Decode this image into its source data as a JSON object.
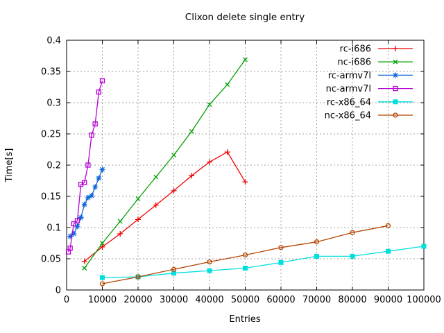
{
  "window": {
    "background": "#ffffff"
  },
  "chart_data": {
    "type": "line",
    "title": "Clixon delete single entry",
    "xlabel": "Entries",
    "ylabel": "Time[s]",
    "xlim": [
      0,
      100000
    ],
    "ylim": [
      0,
      0.4
    ],
    "x_ticks": [
      0,
      10000,
      20000,
      30000,
      40000,
      50000,
      60000,
      70000,
      80000,
      90000,
      100000
    ],
    "x_tick_labels": [
      "0",
      "10000",
      "20000",
      "30000",
      "40000",
      "50000",
      "60000",
      "70000",
      "80000",
      "90000",
      "100000"
    ],
    "y_ticks": [
      0,
      0.05,
      0.1,
      0.15,
      0.2,
      0.25,
      0.3,
      0.35,
      0.4
    ],
    "y_tick_labels": [
      "0",
      "0.05",
      "0.1",
      "0.15",
      "0.2",
      "0.25",
      "0.3",
      "0.35",
      "0.4"
    ],
    "grid": true,
    "grid_color": "#a0a0a0",
    "legend_position": "top-right-inside",
    "series": [
      {
        "name": "rc-i686",
        "color": "#ee0000",
        "marker": "plus",
        "x": [
          5000,
          10000,
          15000,
          20000,
          25000,
          30000,
          35000,
          40000,
          45000,
          50000
        ],
        "y": [
          0.046,
          0.069,
          0.09,
          0.113,
          0.136,
          0.159,
          0.183,
          0.205,
          0.221,
          0.173
        ]
      },
      {
        "name": "nc-i686",
        "color": "#00a000",
        "marker": "cross",
        "x": [
          5000,
          10000,
          15000,
          20000,
          25000,
          30000,
          35000,
          40000,
          45000,
          50000
        ],
        "y": [
          0.035,
          0.075,
          0.11,
          0.146,
          0.181,
          0.216,
          0.254,
          0.297,
          0.329,
          0.369
        ]
      },
      {
        "name": "rc-armv7l",
        "color": "#0a64d8",
        "marker": "asterisk",
        "x": [
          1000,
          2000,
          3000,
          4000,
          5000,
          6000,
          7000,
          8000,
          9000,
          10000
        ],
        "y": [
          0.086,
          0.09,
          0.102,
          0.116,
          0.137,
          0.148,
          0.151,
          0.165,
          0.179,
          0.193
        ]
      },
      {
        "name": "nc-armv7l",
        "color": "#b400d3",
        "marker": "open-square",
        "x": [
          500,
          1000,
          2000,
          3000,
          4000,
          5000,
          6000,
          7000,
          8000,
          9000,
          10000
        ],
        "y": [
          0.061,
          0.067,
          0.106,
          0.111,
          0.169,
          0.172,
          0.2,
          0.248,
          0.266,
          0.317,
          0.335
        ]
      },
      {
        "name": "rc-x86_64",
        "color": "#00dede",
        "marker": "filled-square",
        "x": [
          10000,
          20000,
          30000,
          40000,
          50000,
          60000,
          70000,
          80000,
          90000,
          100000
        ],
        "y": [
          0.02,
          0.021,
          0.027,
          0.031,
          0.035,
          0.044,
          0.054,
          0.054,
          0.062,
          0.07
        ]
      },
      {
        "name": "nc-x86_64",
        "color": "#b54400",
        "marker": "open-circle",
        "x": [
          10000,
          20000,
          30000,
          40000,
          50000,
          60000,
          70000,
          80000,
          90000
        ],
        "y": [
          0.01,
          0.021,
          0.033,
          0.045,
          0.056,
          0.068,
          0.077,
          0.092,
          0.103
        ]
      }
    ]
  }
}
